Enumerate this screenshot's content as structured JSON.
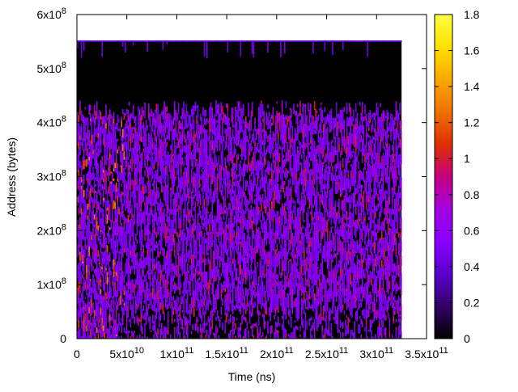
{
  "chart_data": {
    "type": "heatmap",
    "title": "",
    "xlabel": "Time (ns)",
    "ylabel": "Address (bytes)",
    "xlim": [
      0,
      350000000000
    ],
    "ylim": [
      0,
      600000000
    ],
    "x_ticks": [
      {
        "value": 0,
        "mantissa": "0",
        "exp": ""
      },
      {
        "value": 50000000000,
        "mantissa": "5x10",
        "exp": "10"
      },
      {
        "value": 100000000000,
        "mantissa": "1x10",
        "exp": "11"
      },
      {
        "value": 150000000000,
        "mantissa": "1.5x10",
        "exp": "11"
      },
      {
        "value": 200000000000,
        "mantissa": "2x10",
        "exp": "11"
      },
      {
        "value": 250000000000,
        "mantissa": "2.5x10",
        "exp": "11"
      },
      {
        "value": 300000000000,
        "mantissa": "3x10",
        "exp": "11"
      },
      {
        "value": 350000000000,
        "mantissa": "3.5x10",
        "exp": "11"
      }
    ],
    "y_ticks": [
      {
        "value": 0,
        "mantissa": "0",
        "exp": ""
      },
      {
        "value": 100000000,
        "mantissa": "1x10",
        "exp": "8"
      },
      {
        "value": 200000000,
        "mantissa": "2x10",
        "exp": "8"
      },
      {
        "value": 300000000,
        "mantissa": "3x10",
        "exp": "8"
      },
      {
        "value": 400000000,
        "mantissa": "4x10",
        "exp": "8"
      },
      {
        "value": 500000000,
        "mantissa": "5x10",
        "exp": "8"
      },
      {
        "value": 600000000,
        "mantissa": "6x10",
        "exp": "8"
      }
    ],
    "data_extent": {
      "x": [
        0,
        325000000000
      ],
      "y": [
        0,
        552000000
      ]
    },
    "dense_region_top": 425000000,
    "low_band_top": 58000000,
    "colorbar": {
      "range": [
        0,
        1.8
      ],
      "ticks": [
        "0",
        "0.2",
        "0.4",
        "0.6",
        "0.8",
        "1",
        "1.2",
        "1.4",
        "1.6",
        "1.8"
      ],
      "palette": [
        "#000000",
        "#330066",
        "#5a00cc",
        "#8800ff",
        "#a400e0",
        "#c40080",
        "#de3000",
        "#f07000",
        "#fca800",
        "#ffe000",
        "#ffff40"
      ]
    },
    "grid": false,
    "legend": "colorbar-right"
  }
}
